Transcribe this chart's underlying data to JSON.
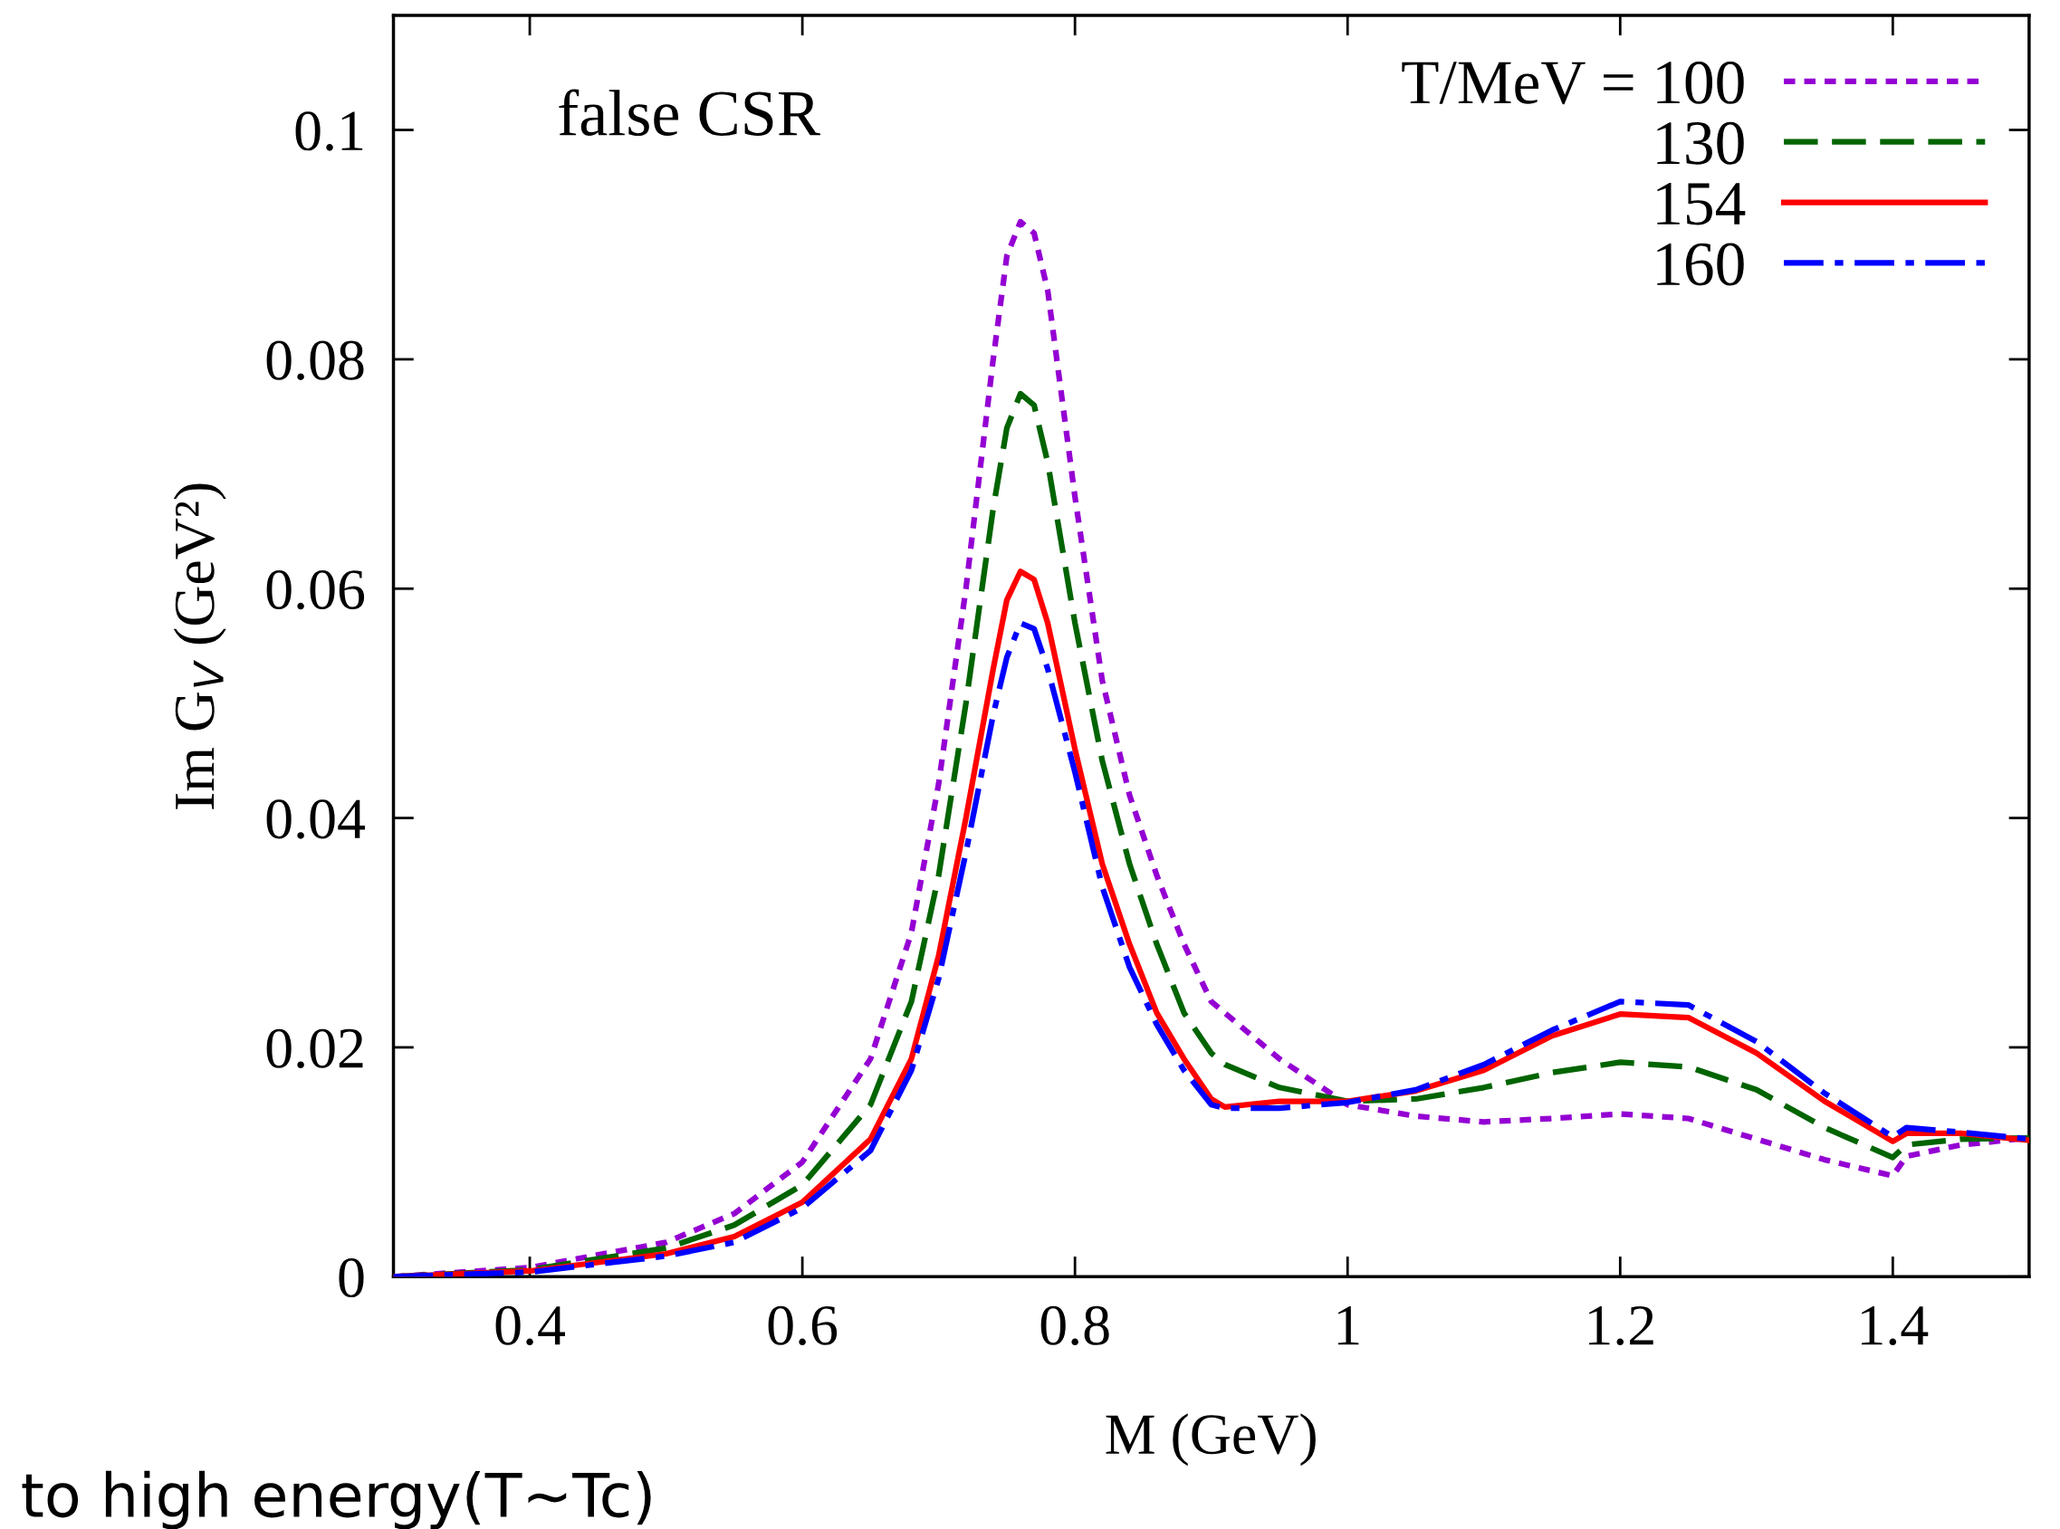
{
  "chart_data": {
    "type": "line",
    "xlabel": "M (GeV)",
    "ylabel": "Im G$_{V}$ (GeV²)",
    "annotations": [
      "false CSR",
      "to high energy(T~Tc)"
    ],
    "xlim": [
      0.3,
      1.5
    ],
    "xticks": [
      0.4,
      0.6,
      0.8,
      1,
      1.2,
      1.4
    ],
    "ylim": [
      0,
      0.11
    ],
    "yticks": [
      0,
      0.02,
      0.04,
      0.06,
      0.08,
      0.1
    ],
    "grid": false,
    "legend": "top right",
    "marker": "none",
    "x": [
      0.3,
      0.4,
      0.5,
      0.55,
      0.6,
      0.65,
      0.68,
      0.7,
      0.72,
      0.74,
      0.75,
      0.76,
      0.77,
      0.78,
      0.8,
      0.82,
      0.84,
      0.86,
      0.88,
      0.9,
      0.91,
      0.95,
      1.0,
      1.05,
      1.1,
      1.15,
      1.2,
      1.25,
      1.3,
      1.35,
      1.4,
      1.41,
      1.45,
      1.5
    ],
    "series": [
      {
        "name": "T/MeV = 100",
        "color": "#9400d3",
        "line_style": "dotted",
        "values": [
          0,
          0.0008,
          0.003,
          0.0055,
          0.01,
          0.019,
          0.03,
          0.043,
          0.06,
          0.08,
          0.089,
          0.092,
          0.091,
          0.086,
          0.068,
          0.052,
          0.042,
          0.035,
          0.029,
          0.024,
          0.023,
          0.019,
          0.015,
          0.014,
          0.0135,
          0.0138,
          0.0142,
          0.0138,
          0.012,
          0.0102,
          0.0088,
          0.0105,
          0.0115,
          0.0121
        ]
      },
      {
        "name": "130",
        "color": "#006400",
        "line_style": "dashed",
        "values": [
          0,
          0.0006,
          0.0025,
          0.0045,
          0.008,
          0.015,
          0.024,
          0.035,
          0.05,
          0.067,
          0.074,
          0.077,
          0.076,
          0.071,
          0.057,
          0.045,
          0.036,
          0.029,
          0.023,
          0.0195,
          0.0185,
          0.0165,
          0.0153,
          0.0155,
          0.0165,
          0.0178,
          0.0187,
          0.0183,
          0.0163,
          0.013,
          0.0104,
          0.0115,
          0.012,
          0.0121
        ]
      },
      {
        "name": "154",
        "color": "#ff0000",
        "line_style": "solid",
        "values": [
          0,
          0.0005,
          0.002,
          0.0035,
          0.0065,
          0.012,
          0.019,
          0.028,
          0.04,
          0.053,
          0.059,
          0.0615,
          0.0608,
          0.057,
          0.046,
          0.036,
          0.029,
          0.023,
          0.019,
          0.0155,
          0.0148,
          0.0153,
          0.0153,
          0.0162,
          0.018,
          0.021,
          0.0229,
          0.0226,
          0.0195,
          0.0153,
          0.0118,
          0.0125,
          0.0125,
          0.0119
        ]
      },
      {
        "name": "160",
        "color": "#0000ff",
        "line_style": "dashdot",
        "values": [
          0,
          0.0004,
          0.0018,
          0.003,
          0.006,
          0.011,
          0.018,
          0.026,
          0.037,
          0.049,
          0.054,
          0.057,
          0.0565,
          0.053,
          0.044,
          0.034,
          0.027,
          0.022,
          0.018,
          0.015,
          0.0147,
          0.0147,
          0.0152,
          0.0163,
          0.0185,
          0.0215,
          0.024,
          0.0237,
          0.0205,
          0.016,
          0.0122,
          0.013,
          0.0126,
          0.012
        ]
      }
    ]
  }
}
